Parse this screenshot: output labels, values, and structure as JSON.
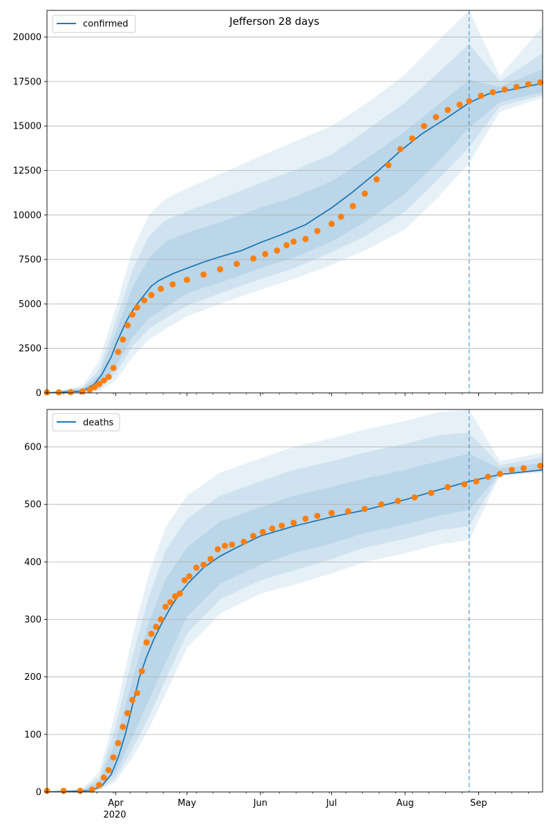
{
  "figure": {
    "title": "Jefferson 28 days",
    "year_label": "2020",
    "forecast_start": "2020-08-28",
    "colors": {
      "model": "#1f77b4",
      "observed": "#ff7f0e",
      "grid": "#b0b0b0",
      "vline": "#1f77b4"
    },
    "month_ticks": [
      {
        "date": "2020-04-01",
        "label": "Apr"
      },
      {
        "date": "2020-05-01",
        "label": "May"
      },
      {
        "date": "2020-06-01",
        "label": "Jun"
      },
      {
        "date": "2020-07-01",
        "label": "Jul"
      },
      {
        "date": "2020-08-01",
        "label": "Aug"
      },
      {
        "date": "2020-09-01",
        "label": "Sep"
      }
    ],
    "xlim": [
      "2020-03-03",
      "2020-09-28"
    ]
  },
  "chart_data": [
    {
      "type": "line",
      "name": "confirmed",
      "legend": "confirmed",
      "ylim": [
        0,
        21500
      ],
      "yticks": [
        0,
        2500,
        5000,
        7500,
        10000,
        12500,
        15000,
        17500,
        20000
      ],
      "grid": "horizontal",
      "legend_position": "top-left",
      "model_line": {
        "x": [
          "2020-03-03",
          "2020-03-18",
          "2020-03-23",
          "2020-03-26",
          "2020-03-28",
          "2020-03-30",
          "2020-04-01",
          "2020-04-03",
          "2020-04-05",
          "2020-04-07",
          "2020-04-10",
          "2020-04-13",
          "2020-04-16",
          "2020-04-19",
          "2020-04-22",
          "2020-04-26",
          "2020-05-01",
          "2020-05-08",
          "2020-05-15",
          "2020-05-24",
          "2020-06-01",
          "2020-06-10",
          "2020-06-20",
          "2020-07-01",
          "2020-07-10",
          "2020-07-20",
          "2020-07-30",
          "2020-08-08",
          "2020-08-18",
          "2020-08-28",
          "2020-09-05",
          "2020-09-15",
          "2020-09-28"
        ],
        "y": [
          0,
          100,
          500,
          1000,
          1500,
          2000,
          2700,
          3300,
          3900,
          4400,
          5000,
          5500,
          6000,
          6300,
          6500,
          6750,
          7000,
          7350,
          7650,
          8000,
          8450,
          8900,
          9450,
          10400,
          11300,
          12400,
          13600,
          14550,
          15400,
          16300,
          16800,
          17050,
          17400
        ]
      },
      "observed_points": {
        "x": [
          "2020-03-03",
          "2020-03-08",
          "2020-03-13",
          "2020-03-18",
          "2020-03-21",
          "2020-03-23",
          "2020-03-25",
          "2020-03-27",
          "2020-03-29",
          "2020-03-31",
          "2020-04-02",
          "2020-04-04",
          "2020-04-06",
          "2020-04-08",
          "2020-04-10",
          "2020-04-13",
          "2020-04-16",
          "2020-04-20",
          "2020-04-25",
          "2020-05-01",
          "2020-05-08",
          "2020-05-15",
          "2020-05-22",
          "2020-05-29",
          "2020-06-03",
          "2020-06-08",
          "2020-06-12",
          "2020-06-15",
          "2020-06-20",
          "2020-06-25",
          "2020-07-01",
          "2020-07-05",
          "2020-07-10",
          "2020-07-15",
          "2020-07-20",
          "2020-07-25",
          "2020-07-30",
          "2020-08-04",
          "2020-08-09",
          "2020-08-14",
          "2020-08-19",
          "2020-08-24",
          "2020-08-28",
          "2020-09-02",
          "2020-09-07",
          "2020-09-12",
          "2020-09-17",
          "2020-09-22",
          "2020-09-27"
        ],
        "y": [
          30,
          30,
          40,
          80,
          180,
          320,
          500,
          700,
          900,
          1400,
          2300,
          3000,
          3800,
          4400,
          4800,
          5200,
          5500,
          5850,
          6100,
          6350,
          6650,
          6950,
          7250,
          7550,
          7800,
          8000,
          8300,
          8500,
          8650,
          9100,
          9500,
          9900,
          10500,
          11200,
          12000,
          12800,
          13700,
          14300,
          15000,
          15500,
          15900,
          16200,
          16400,
          16700,
          16900,
          17050,
          17200,
          17350,
          17450
        ]
      },
      "bands": [
        {
          "x": [
            "2020-03-03",
            "2020-03-18",
            "2020-03-25",
            "2020-04-01",
            "2020-04-08",
            "2020-04-15",
            "2020-04-22",
            "2020-05-01",
            "2020-05-15",
            "2020-06-01",
            "2020-06-15",
            "2020-07-01",
            "2020-07-15",
            "2020-08-01",
            "2020-08-15",
            "2020-08-28",
            "2020-09-10",
            "2020-09-28"
          ],
          "lower": [
            0,
            0,
            100,
            700,
            2000,
            3000,
            3600,
            4300,
            5000,
            5800,
            6400,
            7200,
            8000,
            9200,
            11000,
            12900,
            15800,
            16600
          ],
          "upper": [
            0,
            400,
            1800,
            4800,
            8000,
            10000,
            10900,
            11500,
            12300,
            13300,
            14100,
            15000,
            16200,
            17900,
            19800,
            21500,
            17800,
            20600
          ]
        },
        {
          "x": [
            "2020-03-03",
            "2020-03-18",
            "2020-03-25",
            "2020-04-01",
            "2020-04-08",
            "2020-04-15",
            "2020-04-22",
            "2020-05-01",
            "2020-05-15",
            "2020-06-01",
            "2020-06-15",
            "2020-07-01",
            "2020-07-15",
            "2020-08-01",
            "2020-08-15",
            "2020-08-28",
            "2020-09-10",
            "2020-09-28"
          ],
          "lower": [
            0,
            20,
            200,
            1100,
            2600,
            3600,
            4200,
            4900,
            5600,
            6400,
            7000,
            7900,
            8800,
            10200,
            12000,
            13800,
            16100,
            16750
          ],
          "upper": [
            0,
            300,
            1300,
            4000,
            6900,
            8800,
            9700,
            10200,
            10900,
            11800,
            12500,
            13400,
            14700,
            16300,
            18000,
            19600,
            17500,
            19100
          ]
        },
        {
          "x": [
            "2020-03-03",
            "2020-03-18",
            "2020-03-25",
            "2020-04-01",
            "2020-04-08",
            "2020-04-15",
            "2020-04-22",
            "2020-05-01",
            "2020-05-15",
            "2020-06-01",
            "2020-06-15",
            "2020-07-01",
            "2020-07-15",
            "2020-08-01",
            "2020-08-15",
            "2020-08-28",
            "2020-09-10",
            "2020-09-28"
          ],
          "lower": [
            0,
            40,
            300,
            1500,
            3100,
            4200,
            4800,
            5600,
            6200,
            7000,
            7600,
            8500,
            9600,
            11200,
            13000,
            14900,
            16350,
            16900
          ],
          "upper": [
            0,
            250,
            1000,
            3400,
            5900,
            7600,
            8500,
            9000,
            9600,
            10400,
            11000,
            11900,
            13100,
            14700,
            16200,
            17600,
            17200,
            18200
          ]
        }
      ],
      "y_values_reference": {
        "forecast_start": "2020-08-28"
      }
    },
    {
      "type": "line",
      "name": "deaths",
      "legend": "deaths",
      "ylim": [
        0,
        665
      ],
      "yticks": [
        0,
        100,
        200,
        300,
        400,
        500,
        600
      ],
      "grid": "horizontal",
      "legend_position": "top-left",
      "model_line": {
        "x": [
          "2020-03-03",
          "2020-03-21",
          "2020-03-26",
          "2020-03-30",
          "2020-04-02",
          "2020-04-05",
          "2020-04-08",
          "2020-04-11",
          "2020-04-14",
          "2020-04-17",
          "2020-04-20",
          "2020-04-24",
          "2020-04-28",
          "2020-05-02",
          "2020-05-08",
          "2020-05-15",
          "2020-05-22",
          "2020-06-01",
          "2020-06-15",
          "2020-07-01",
          "2020-07-15",
          "2020-08-01",
          "2020-08-15",
          "2020-08-28",
          "2020-09-10",
          "2020-09-28"
        ],
        "y": [
          0,
          2,
          10,
          30,
          60,
          100,
          150,
          200,
          235,
          265,
          290,
          320,
          345,
          365,
          390,
          410,
          425,
          445,
          462,
          478,
          490,
          508,
          525,
          540,
          552,
          560
        ]
      },
      "observed_points": {
        "x": [
          "2020-03-03",
          "2020-03-10",
          "2020-03-17",
          "2020-03-22",
          "2020-03-25",
          "2020-03-27",
          "2020-03-29",
          "2020-03-31",
          "2020-04-02",
          "2020-04-04",
          "2020-04-06",
          "2020-04-08",
          "2020-04-10",
          "2020-04-12",
          "2020-04-14",
          "2020-04-16",
          "2020-04-18",
          "2020-04-20",
          "2020-04-22",
          "2020-04-24",
          "2020-04-26",
          "2020-04-28",
          "2020-04-30",
          "2020-05-02",
          "2020-05-05",
          "2020-05-08",
          "2020-05-11",
          "2020-05-14",
          "2020-05-17",
          "2020-05-20",
          "2020-05-25",
          "2020-05-29",
          "2020-06-02",
          "2020-06-06",
          "2020-06-10",
          "2020-06-15",
          "2020-06-20",
          "2020-06-25",
          "2020-07-01",
          "2020-07-08",
          "2020-07-15",
          "2020-07-22",
          "2020-07-29",
          "2020-08-05",
          "2020-08-12",
          "2020-08-19",
          "2020-08-26",
          "2020-08-31",
          "2020-09-05",
          "2020-09-10",
          "2020-09-15",
          "2020-09-20",
          "2020-09-27"
        ],
        "y": [
          2,
          2,
          2,
          4,
          12,
          25,
          38,
          60,
          85,
          113,
          137,
          160,
          172,
          210,
          260,
          275,
          287,
          300,
          322,
          330,
          340,
          345,
          368,
          375,
          390,
          395,
          405,
          422,
          428,
          430,
          435,
          445,
          452,
          458,
          463,
          468,
          475,
          480,
          485,
          488,
          492,
          500,
          506,
          512,
          520,
          530,
          535,
          540,
          548,
          553,
          560,
          563,
          567
        ]
      },
      "bands": [
        {
          "x": [
            "2020-03-03",
            "2020-03-18",
            "2020-03-25",
            "2020-04-01",
            "2020-04-08",
            "2020-04-15",
            "2020-04-22",
            "2020-05-01",
            "2020-05-15",
            "2020-06-01",
            "2020-06-15",
            "2020-07-01",
            "2020-07-15",
            "2020-08-01",
            "2020-08-15",
            "2020-08-28",
            "2020-09-10",
            "2020-09-28"
          ],
          "lower": [
            0,
            0,
            2,
            18,
            60,
            110,
            170,
            250,
            310,
            345,
            360,
            380,
            400,
            415,
            430,
            438,
            550,
            555
          ],
          "upper": [
            0,
            6,
            35,
            140,
            270,
            380,
            460,
            515,
            555,
            580,
            600,
            615,
            630,
            645,
            660,
            665,
            575,
            590
          ]
        },
        {
          "x": [
            "2020-03-03",
            "2020-03-18",
            "2020-03-25",
            "2020-04-01",
            "2020-04-08",
            "2020-04-15",
            "2020-04-22",
            "2020-05-01",
            "2020-05-15",
            "2020-06-01",
            "2020-06-15",
            "2020-07-01",
            "2020-07-15",
            "2020-08-01",
            "2020-08-15",
            "2020-08-28",
            "2020-09-10",
            "2020-09-28"
          ],
          "lower": [
            0,
            1,
            4,
            25,
            75,
            130,
            195,
            275,
            335,
            368,
            385,
            405,
            425,
            440,
            455,
            462,
            553,
            557
          ],
          "upper": [
            0,
            4,
            25,
            115,
            235,
            340,
            420,
            475,
            515,
            540,
            560,
            575,
            590,
            605,
            620,
            625,
            568,
            582
          ]
        },
        {
          "x": [
            "2020-03-03",
            "2020-03-18",
            "2020-03-25",
            "2020-04-01",
            "2020-04-08",
            "2020-04-15",
            "2020-04-22",
            "2020-05-01",
            "2020-05-15",
            "2020-06-01",
            "2020-06-15",
            "2020-07-01",
            "2020-07-15",
            "2020-08-01",
            "2020-08-15",
            "2020-08-28",
            "2020-09-10",
            "2020-09-28"
          ],
          "lower": [
            0,
            2,
            6,
            35,
            95,
            160,
            225,
            305,
            362,
            395,
            415,
            432,
            450,
            465,
            480,
            490,
            555,
            558
          ],
          "upper": [
            0,
            3,
            18,
            90,
            195,
            295,
            370,
            425,
            470,
            495,
            515,
            530,
            545,
            560,
            575,
            588,
            562,
            572
          ]
        }
      ]
    }
  ]
}
